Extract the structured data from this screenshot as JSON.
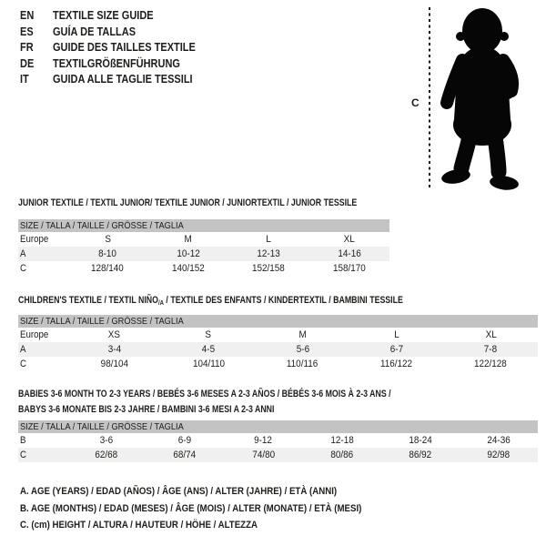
{
  "theme": {
    "ink": "#1d1d1b",
    "header_bar": "#c3c3c3",
    "shaded_row": "#f0f0f0",
    "background": "#ffffff"
  },
  "language_guide": {
    "items": [
      {
        "code": "EN",
        "label": "TEXTILE SIZE GUIDE"
      },
      {
        "code": "ES",
        "label": "GUÍA DE TALLAS"
      },
      {
        "code": "FR",
        "label": "GUIDE DES TAILLES TEXTILE"
      },
      {
        "code": "DE",
        "label": "TEXTILGRÖßENFÜHRUNG"
      },
      {
        "code": "IT",
        "label": "GUIDA ALLE TAGLIE TESSILI"
      }
    ]
  },
  "figure": {
    "icon": "toddler-silhouette",
    "measure_line_label": "C"
  },
  "size_tables": [
    {
      "name": "junior-textile",
      "title_lines": [
        [
          {
            "text": "JUNIOR TEXTILE / TEXTIL JUNIOR/ TEXTILE JUNIOR / JUNIORTEXTIL / JUNIOR TESSILE"
          }
        ]
      ],
      "header": "SIZE / TALLA / TAILLE / GRÖSSE / TAGLIA",
      "rows": [
        {
          "label": "Europe",
          "values": [
            "S",
            "M",
            "L",
            "XL"
          ],
          "shaded": false
        },
        {
          "label": "A",
          "values": [
            "8-10",
            "10-12",
            "12-13",
            "14-16"
          ],
          "shaded": true
        },
        {
          "label": "C",
          "values": [
            "128/140",
            "140/152",
            "152/158",
            "158/170"
          ],
          "shaded": false
        }
      ]
    },
    {
      "name": "childrens-textile",
      "title_lines": [
        [
          {
            "text": "CHILDREN'S TEXTILE / TEXTIL NIÑO"
          },
          {
            "text": "/A",
            "sub": true
          },
          {
            "text": " / TEXTILE DES ENFANTS / KINDERTEXTIL / BAMBINI TESSILE"
          }
        ]
      ],
      "header": "SIZE / TALLA / TAILLE / GRÖSSE / TAGLIA",
      "rows": [
        {
          "label": "Europe",
          "values": [
            "XS",
            "S",
            "M",
            "L",
            "XL"
          ],
          "shaded": false
        },
        {
          "label": "A",
          "values": [
            "3-4",
            "4-5",
            "5-6",
            "6-7",
            "7-8"
          ],
          "shaded": true
        },
        {
          "label": "C",
          "values": [
            "98/104",
            "104/110",
            "110/116",
            "116/122",
            "122/128"
          ],
          "shaded": false
        }
      ]
    },
    {
      "name": "babies-textile",
      "title_lines": [
        [
          {
            "text": "BABIES 3-6 MONTH TO 2-3 YEARS / BEBÉS 3-6 MESES A 2-3 AÑOS / BÉBÉS 3-6 MOIS À 2-3 ANS /"
          }
        ],
        [
          {
            "text": "BABYS 3-6 MONATE BIS 2-3 JAHRE / BAMBINI 3-6 MESI A 2-3 ANNI"
          }
        ]
      ],
      "header": "SIZE / TALLA / TAILLE / GRÖSSE / TAGLIA",
      "rows": [
        {
          "label": "B",
          "values": [
            "3-6",
            "6-9",
            "9-12",
            "12-18",
            "18-24",
            "24-36"
          ],
          "shaded": false
        },
        {
          "label": "C",
          "values": [
            "62/68",
            "68/74",
            "74/80",
            "80/86",
            "86/92",
            "92/98"
          ],
          "shaded": true
        }
      ]
    }
  ],
  "footnotes": [
    "A. AGE (YEARS) / EDAD (AÑOS) / ÂGE (ANS) / ALTER (JAHRE) / ETÀ (ANNI)",
    "B. AGE (MONTHS) / EDAD (MESES) / ÂGE (MOIS) / ALTER (MONATE) / ETÀ (MESI)",
    "C. (cm) HEIGHT / ALTURA / HAUTEUR / HÖHE / ALTEZZA"
  ]
}
